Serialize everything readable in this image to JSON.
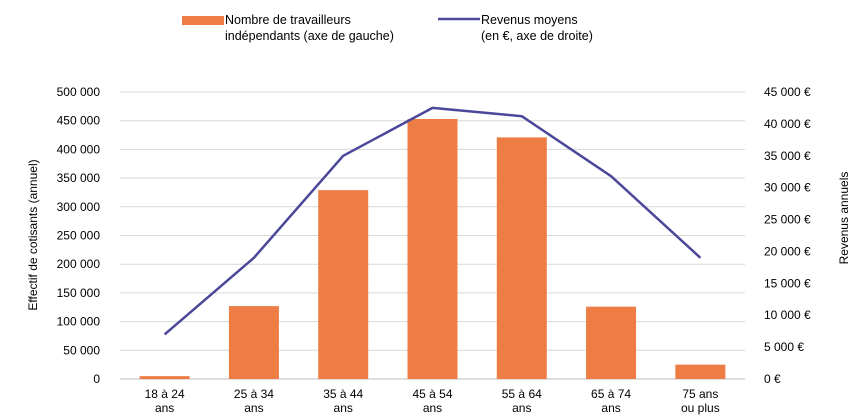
{
  "chart_data": {
    "type": "bar",
    "categories": [
      [
        "18 à 24",
        "ans"
      ],
      [
        "25 à 34",
        "ans"
      ],
      [
        "35 à 44",
        "ans"
      ],
      [
        "45 à 54",
        "ans"
      ],
      [
        "55 à 64",
        "ans"
      ],
      [
        "65 à 74",
        "ans"
      ],
      [
        "75 ans",
        "ou plus"
      ]
    ],
    "series": [
      {
        "name": [
          "Nombre de travailleurs",
          "indépendants (axe de gauche)"
        ],
        "type": "bar",
        "axis": "left",
        "color": "#ED7D45",
        "values": [
          5000,
          127000,
          329000,
          453000,
          421000,
          126000,
          25000
        ]
      },
      {
        "name": [
          "Revenus moyens",
          "(en €, axe de droite)"
        ],
        "type": "line",
        "axis": "right",
        "color": "#4B4799",
        "values": [
          7000,
          19000,
          35000,
          42500,
          41200,
          31800,
          19000
        ]
      }
    ],
    "ylabel": "Effectif de cotisants (annuel)",
    "y2label": "Revenus annuels",
    "ylim": [
      0,
      500000
    ],
    "y2lim": [
      0,
      45000
    ],
    "yticks": [
      "0",
      "50 000",
      "100 000",
      "150 000",
      "200 000",
      "250 000",
      "300 000",
      "350 000",
      "400 000",
      "450 000",
      "500 000"
    ],
    "y2ticks": [
      "0 €",
      "5 000 €",
      "10 000 €",
      "15 000 €",
      "20 000 €",
      "25 000 €",
      "30 000 €",
      "35 000 €",
      "40 000 €",
      "45 000 €"
    ],
    "grid": true,
    "legend": "top"
  }
}
